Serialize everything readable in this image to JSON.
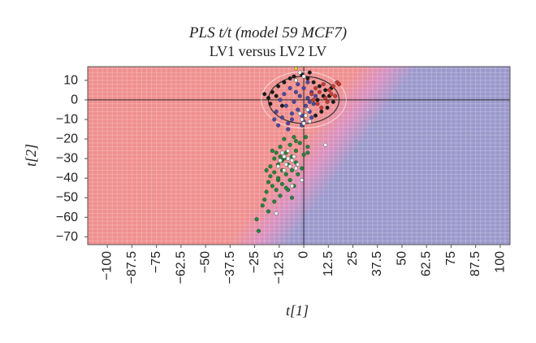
{
  "chart_data": {
    "type": "scatter",
    "title": "PLS t/t (model 59 MCF7)",
    "subtitle": "LV1 versus LV2 LV",
    "xlabel": "t[1]",
    "ylabel": "t[2]",
    "xlim": [
      -110,
      105
    ],
    "ylim": [
      -74,
      17
    ],
    "x_ticks": [
      -100,
      -87.5,
      -75,
      -62.5,
      -50,
      -37.5,
      -25,
      -12.5,
      0,
      12.5,
      25,
      37.5,
      50,
      62.5,
      75,
      87.5,
      100
    ],
    "x_tick_labels": [
      "−100",
      "−87.5",
      "−75",
      "−62.5",
      "−50",
      "−37.5",
      "−25",
      "−12.5",
      "0",
      "12.5",
      "25",
      "37.5",
      "50",
      "62.5",
      "75",
      "87.5",
      "100"
    ],
    "y_ticks": [
      10,
      0,
      -10,
      -20,
      -30,
      -40,
      -50,
      -60,
      -70
    ],
    "y_tick_labels": [
      "10",
      "0",
      "−10",
      "−20",
      "−30",
      "−40",
      "−50",
      "−60",
      "−70"
    ],
    "grid": true,
    "background_regions": {
      "left_color": "#f08f8f",
      "right_color": "#9b98cc"
    },
    "confidence_ellipse": {
      "center": [
        0,
        0
      ],
      "radius_x": 18,
      "radius_y": 12
    },
    "series": [
      {
        "color": "#1f8a3a",
        "points": [
          [
            -24,
            -61
          ],
          [
            -23,
            -67
          ],
          [
            -21,
            -54
          ],
          [
            -20,
            -51
          ],
          [
            -19,
            -47
          ],
          [
            -18,
            -42
          ],
          [
            -17,
            -39
          ],
          [
            -17,
            -34
          ],
          [
            -16,
            -44
          ],
          [
            -15,
            -30
          ],
          [
            -15,
            -37
          ],
          [
            -14,
            -46
          ],
          [
            -14,
            -27
          ],
          [
            -13,
            -33
          ],
          [
            -13,
            -41
          ],
          [
            -12,
            -49
          ],
          [
            -12,
            -24
          ],
          [
            -11,
            -36
          ],
          [
            -11,
            -43
          ],
          [
            -10,
            -30
          ],
          [
            -10,
            -20
          ],
          [
            -9,
            -38
          ],
          [
            -9,
            -27
          ],
          [
            -8,
            -33
          ],
          [
            -8,
            -46
          ],
          [
            -7,
            -23
          ],
          [
            -7,
            -41
          ],
          [
            -6,
            -36
          ],
          [
            -6,
            -29
          ],
          [
            -5,
            -44
          ],
          [
            -5,
            -19
          ],
          [
            -4,
            -32
          ],
          [
            -4,
            -26
          ],
          [
            -3,
            -38
          ],
          [
            -2,
            -22
          ],
          [
            -1,
            -35
          ],
          [
            0,
            -28
          ],
          [
            1,
            -19
          ],
          [
            2,
            -24
          ],
          [
            -15,
            -52
          ],
          [
            -18,
            -57
          ],
          [
            -13,
            -40
          ],
          [
            -11,
            -31
          ],
          [
            -9,
            -45
          ],
          [
            -6,
            -50
          ],
          [
            -16,
            -26
          ],
          [
            -19,
            -36
          ],
          [
            -12,
            -29
          ],
          [
            -4,
            -21
          ],
          [
            2,
            -27
          ]
        ]
      },
      {
        "color": "#4a4aa8",
        "points": [
          [
            -14,
            -6
          ],
          [
            -11,
            -9
          ],
          [
            -9,
            -3
          ],
          [
            -8,
            -12
          ],
          [
            -6,
            -7
          ],
          [
            -5,
            -1
          ],
          [
            -4,
            4
          ],
          [
            -3,
            -5
          ],
          [
            -2,
            2
          ],
          [
            -1,
            -8
          ],
          [
            0,
            6
          ],
          [
            1,
            -3
          ],
          [
            2,
            1
          ],
          [
            3,
            -6
          ],
          [
            4,
            4
          ],
          [
            5,
            -2
          ],
          [
            -12,
            0
          ],
          [
            -10,
            3
          ],
          [
            -7,
            6
          ],
          [
            -6,
            -10
          ],
          [
            -3,
            8
          ],
          [
            0,
            -11
          ],
          [
            2,
            9
          ],
          [
            4,
            -9
          ],
          [
            6,
            2
          ],
          [
            -15,
            -10
          ],
          [
            -13,
            -13
          ],
          [
            -8,
            -15
          ],
          [
            -1,
            -13
          ],
          [
            3,
            -1
          ]
        ]
      },
      {
        "color": "#1a1a1a",
        "points": [
          [
            -18,
            1
          ],
          [
            -16,
            4
          ],
          [
            -13,
            7
          ],
          [
            -10,
            9
          ],
          [
            -7,
            11
          ],
          [
            -4,
            10
          ],
          [
            -1,
            13
          ],
          [
            2,
            11
          ],
          [
            5,
            9
          ],
          [
            8,
            7
          ],
          [
            11,
            5
          ],
          [
            13,
            2
          ],
          [
            15,
            -1
          ],
          [
            12,
            -4
          ],
          [
            9,
            -6
          ],
          [
            6,
            -8
          ],
          [
            -20,
            3
          ],
          [
            -17,
            -2
          ],
          [
            -14,
            2
          ],
          [
            -11,
            -3
          ],
          [
            7,
            0
          ],
          [
            10,
            2
          ],
          [
            14,
            6
          ],
          [
            3,
            14
          ],
          [
            -5,
            12
          ]
        ]
      },
      {
        "color": "#d03a2f",
        "points": [
          [
            4,
            3
          ],
          [
            6,
            6
          ],
          [
            8,
            4
          ],
          [
            10,
            8
          ],
          [
            11,
            1
          ],
          [
            13,
            5
          ],
          [
            15,
            7
          ],
          [
            16,
            2
          ],
          [
            17,
            9
          ],
          [
            7,
            -2
          ],
          [
            9,
            -4
          ],
          [
            12,
            -1
          ],
          [
            5,
            0
          ],
          [
            14,
            3
          ],
          [
            18,
            8
          ]
        ]
      },
      {
        "color": "#e8f3f3",
        "points": [
          [
            -12,
            -31
          ],
          [
            -10,
            -29
          ],
          [
            -9,
            -33
          ],
          [
            -8,
            -30
          ],
          [
            -7,
            -34
          ],
          [
            -6,
            -31
          ],
          [
            -11,
            -27
          ],
          [
            -5,
            -29
          ],
          [
            -4,
            -35
          ],
          [
            -13,
            -34
          ],
          [
            -8,
            -26
          ],
          [
            -3,
            -33
          ],
          [
            -10,
            -36
          ],
          [
            1,
            -8
          ],
          [
            3,
            -11
          ],
          [
            -1,
            -10
          ],
          [
            2,
            -5
          ],
          [
            0,
            -12
          ],
          [
            -2,
            -7
          ],
          [
            11,
            -23
          ],
          [
            -1,
            -41
          ],
          [
            -6,
            -44
          ],
          [
            -14,
            -58
          ],
          [
            -4,
            10
          ],
          [
            -2,
            14
          ],
          [
            0,
            12
          ]
        ]
      },
      {
        "color": "#e2d234",
        "points": [
          [
            -4,
            16
          ]
        ]
      }
    ]
  }
}
